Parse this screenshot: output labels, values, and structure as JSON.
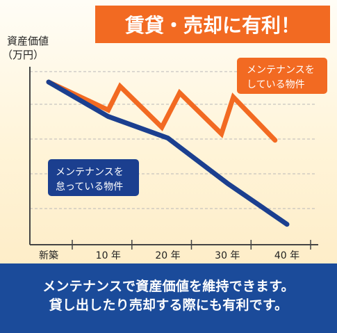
{
  "banner": "賃貸・売却に有利！",
  "footer": {
    "line1": "メンテナンスで資産価値を維持できます。",
    "line2": "貸し出したり売却する際にも有利です。"
  },
  "colors": {
    "orange": "#f26a22",
    "navy": "#1b3f8f",
    "footer": "#1b4b9a"
  },
  "chart_data": {
    "type": "line",
    "ylabel": "資産価値",
    "yunit": "（万円）",
    "categories": [
      "新築",
      "10 年",
      "20 年",
      "30 年",
      "40 年"
    ],
    "x_range": [
      0,
      40
    ],
    "grid": true,
    "series": [
      {
        "name": "メンテナンスをしている物件",
        "label_lines": [
          "メンテナンスを",
          "している物件"
        ],
        "color": "#f26a22",
        "points": [
          [
            0,
            100
          ],
          [
            10,
            87
          ],
          [
            12,
            98
          ],
          [
            19,
            79
          ],
          [
            22,
            95
          ],
          [
            29,
            76
          ],
          [
            31,
            93
          ],
          [
            38,
            73
          ]
        ]
      },
      {
        "name": "メンテナンスを怠っている物件",
        "label_lines": [
          "メンテナンスを",
          "怠っている物件"
        ],
        "color": "#1b3f8f",
        "points": [
          [
            0,
            100
          ],
          [
            10,
            84
          ],
          [
            20,
            74
          ],
          [
            30,
            53
          ],
          [
            40,
            34
          ]
        ]
      }
    ]
  }
}
